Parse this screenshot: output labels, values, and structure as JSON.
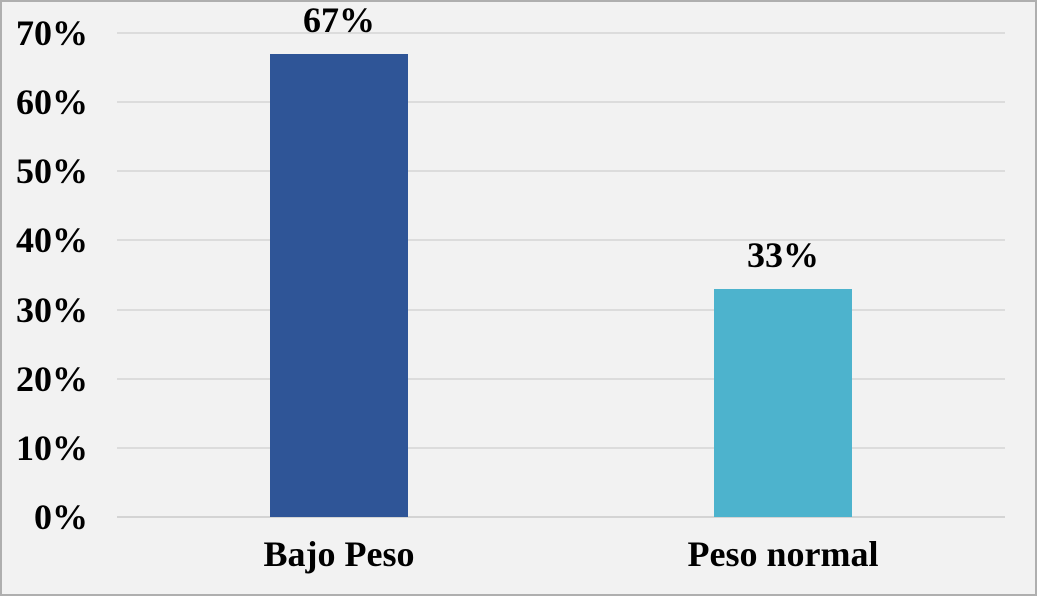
{
  "chart_data": {
    "type": "bar",
    "categories": [
      "Bajo Peso",
      "Peso normal"
    ],
    "values": [
      67,
      33
    ],
    "value_labels": [
      "67%",
      "33%"
    ],
    "bar_colors": [
      "#2F5597",
      "#4DB3CD"
    ],
    "title": "",
    "xlabel": "",
    "ylabel": "",
    "ylim": [
      0,
      70
    ],
    "y_tick_values": [
      0,
      10,
      20,
      30,
      40,
      50,
      60,
      70
    ],
    "y_tick_labels": [
      "0%",
      "10%",
      "20%",
      "30%",
      "40%",
      "50%",
      "60%",
      "70%"
    ],
    "grid": true,
    "legend": false
  },
  "colors": {
    "background": "#F2F2F2",
    "frame_border": "#AFAFAF",
    "gridline": "#DCDCDC",
    "axis_line": "#D4D4D4",
    "text": "#000000"
  }
}
